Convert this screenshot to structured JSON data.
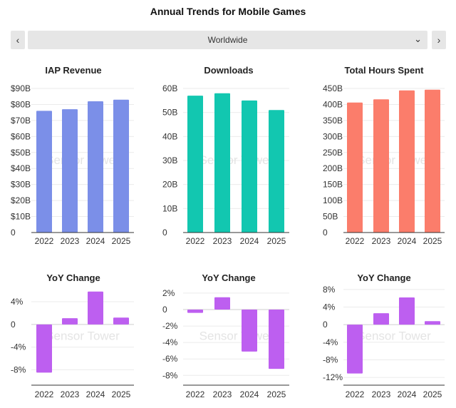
{
  "page": {
    "title": "Annual Trends for Mobile Games",
    "prev_label": "‹",
    "next_label": "›",
    "region_selected": "Worldwide",
    "watermark": "Sensor Tower"
  },
  "chart_data": [
    {
      "type": "bar",
      "title": "IAP Revenue",
      "categories": [
        "2022",
        "2023",
        "2024",
        "2025"
      ],
      "values": [
        76,
        77,
        82,
        83
      ],
      "ylim": [
        0,
        90
      ],
      "ticks": [
        0,
        10,
        20,
        30,
        40,
        50,
        60,
        70,
        80,
        90
      ],
      "tick_labels": [
        "0",
        "$10B",
        "$20B",
        "$30B",
        "$40B",
        "$50B",
        "$60B",
        "$70B",
        "$80B",
        "$90B"
      ],
      "color": "#7b8fe8"
    },
    {
      "type": "bar",
      "title": "Downloads",
      "categories": [
        "2022",
        "2023",
        "2024",
        "2025"
      ],
      "values": [
        57,
        58,
        55,
        51
      ],
      "ylim": [
        0,
        60
      ],
      "ticks": [
        0,
        10,
        20,
        30,
        40,
        50,
        60
      ],
      "tick_labels": [
        "0",
        "10B",
        "20B",
        "30B",
        "40B",
        "50B",
        "60B"
      ],
      "color": "#12c7b0"
    },
    {
      "type": "bar",
      "title": "Total Hours Spent",
      "categories": [
        "2022",
        "2023",
        "2024",
        "2025"
      ],
      "values": [
        406,
        416,
        444,
        446
      ],
      "ylim": [
        0,
        450
      ],
      "ticks": [
        0,
        50,
        100,
        150,
        200,
        250,
        300,
        350,
        400,
        450
      ],
      "tick_labels": [
        "0",
        "50B",
        "100B",
        "150B",
        "200B",
        "250B",
        "300B",
        "350B",
        "400B",
        "450B"
      ],
      "color": "#fb7d6b"
    },
    {
      "type": "bar",
      "title": "YoY Change",
      "categories": [
        "2022",
        "2023",
        "2024",
        "2025"
      ],
      "values": [
        -8.5,
        1.1,
        5.8,
        1.2
      ],
      "ylim": [
        -10.6,
        6.4
      ],
      "ticks": [
        -8,
        -4,
        0,
        4
      ],
      "tick_labels": [
        "-8%",
        "-4%",
        "0",
        "4%"
      ],
      "color": "#bd5ff0"
    },
    {
      "type": "bar",
      "title": "YoY Change",
      "categories": [
        "2022",
        "2023",
        "2024",
        "2025"
      ],
      "values": [
        -0.4,
        1.5,
        -5.1,
        -7.2
      ],
      "ylim": [
        -9.1,
        2.6
      ],
      "ticks": [
        -8,
        -6,
        -4,
        -2,
        0,
        2
      ],
      "tick_labels": [
        "-8%",
        "-6%",
        "-4%",
        "-2%",
        "0",
        "2%"
      ],
      "color": "#bd5ff0"
    },
    {
      "type": "bar",
      "title": "YoY Change",
      "categories": [
        "2022",
        "2023",
        "2024",
        "2025"
      ],
      "values": [
        -11.1,
        2.6,
        6.2,
        0.8
      ],
      "ylim": [
        -13.6,
        8.3
      ],
      "ticks": [
        -12,
        -8,
        -4,
        0,
        4,
        8
      ],
      "tick_labels": [
        "-12%",
        "-8%",
        "-4%",
        "0",
        "4%",
        "8%"
      ],
      "color": "#bd5ff0"
    }
  ]
}
